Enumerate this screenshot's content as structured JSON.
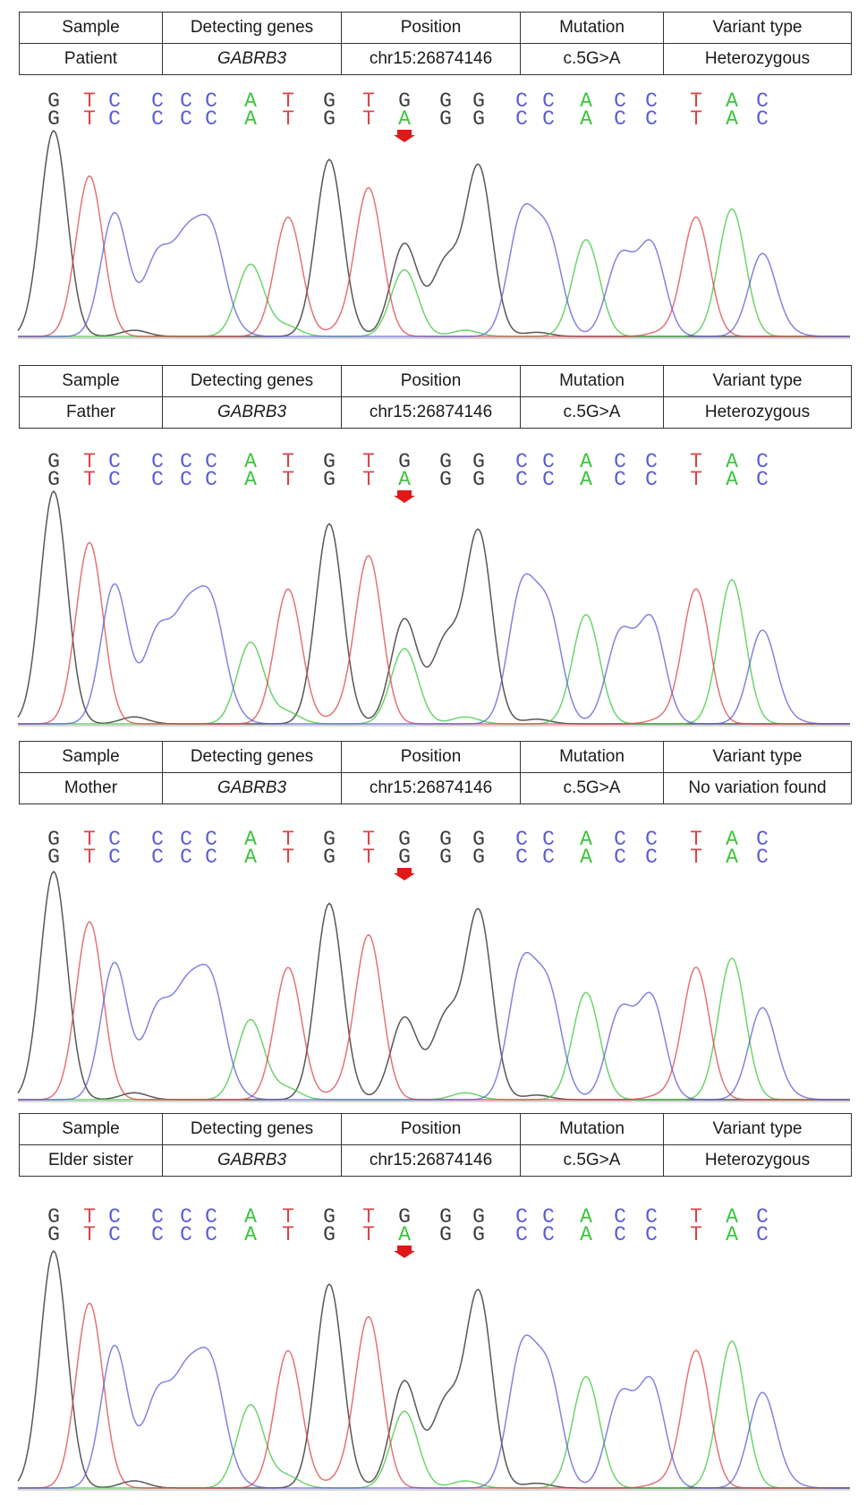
{
  "colors": {
    "G": "#3a3a3a",
    "A": "#3ec43e",
    "T": "#d9444a",
    "C": "#5a5ad6",
    "arrow": "#e01818"
  },
  "headers": [
    "Sample",
    "Detecting genes",
    "Position",
    "Mutation",
    "Variant type"
  ],
  "reference": [
    "G",
    "T",
    "C",
    "C",
    "C",
    "C",
    "A",
    "T",
    "G",
    "T",
    "G",
    "G",
    "G",
    "C",
    "C",
    "A",
    "C",
    "C",
    "T",
    "A",
    "C"
  ],
  "panels": [
    {
      "sample": "Patient",
      "gene": "GABRB3",
      "position": "chr15:26874146",
      "mutation": "c.5G>A",
      "variant": "Heterozygous",
      "called": [
        "G",
        "T",
        "C",
        "C",
        "C",
        "C",
        "A",
        "T",
        "G",
        "T",
        "A",
        "G",
        "G",
        "C",
        "C",
        "A",
        "C",
        "C",
        "T",
        "A",
        "C"
      ],
      "variant_index": 10,
      "secondary_level": 0.5
    },
    {
      "sample": "Father",
      "gene": "GABRB3",
      "position": "chr15:26874146",
      "mutation": "c.5G>A",
      "variant": "Heterozygous",
      "called": [
        "G",
        "T",
        "C",
        "C",
        "C",
        "C",
        "A",
        "T",
        "G",
        "T",
        "A",
        "G",
        "G",
        "C",
        "C",
        "A",
        "C",
        "C",
        "T",
        "A",
        "C"
      ],
      "variant_index": 10,
      "secondary_level": 0.5
    },
    {
      "sample": "Mother",
      "gene": "GABRB3",
      "position": "chr15:26874146",
      "mutation": "c.5G>A",
      "variant": "No variation found",
      "called": [
        "G",
        "T",
        "C",
        "C",
        "C",
        "C",
        "A",
        "T",
        "G",
        "T",
        "G",
        "G",
        "G",
        "C",
        "C",
        "A",
        "C",
        "C",
        "T",
        "A",
        "C"
      ],
      "variant_index": 10,
      "secondary_level": 0
    },
    {
      "sample": "Elder sister",
      "gene": "GABRB3",
      "position": "chr15:26874146",
      "mutation": "c.5G>A",
      "variant": "Heterozygous",
      "called": [
        "G",
        "T",
        "C",
        "C",
        "C",
        "C",
        "A",
        "T",
        "G",
        "T",
        "A",
        "G",
        "G",
        "C",
        "C",
        "A",
        "C",
        "C",
        "T",
        "A",
        "C"
      ],
      "variant_index": 10,
      "secondary_level": 0.5
    }
  ]
}
